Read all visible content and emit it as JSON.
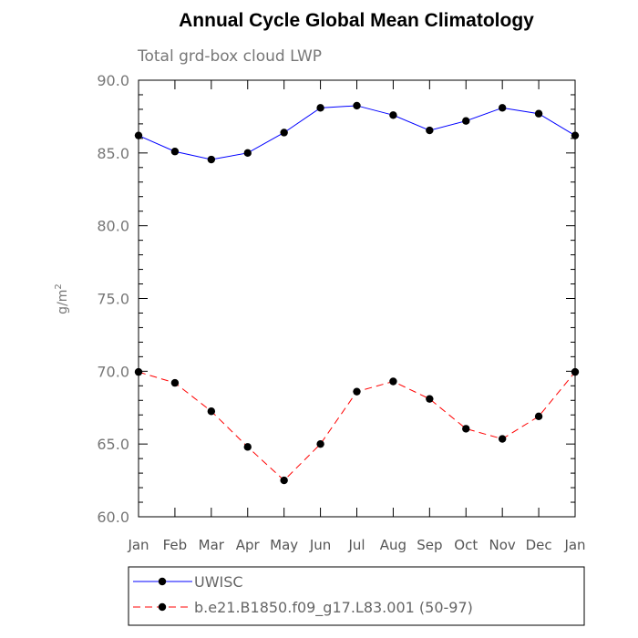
{
  "chart_data": {
    "type": "line",
    "title": "Annual Cycle Global Mean Climatology",
    "subtitle": "Total grd-box cloud LWP",
    "xlabel": "",
    "ylabel": "g/m",
    "ylabel_superscript": "2",
    "ylim": [
      60,
      90
    ],
    "yticks": [
      "60.0",
      "65.0",
      "70.0",
      "75.0",
      "80.0",
      "85.0",
      "90.0"
    ],
    "categories": [
      "Jan",
      "Feb",
      "Mar",
      "Apr",
      "May",
      "Jun",
      "Jul",
      "Aug",
      "Sep",
      "Oct",
      "Nov",
      "Dec",
      "Jan"
    ],
    "grid": false,
    "legend_position": "bottom",
    "series": [
      {
        "name": "UWISC",
        "color": "#0000ff",
        "line_style": "solid",
        "marker": "circle",
        "values": [
          86.2,
          85.1,
          84.55,
          85.0,
          86.4,
          88.1,
          88.25,
          87.6,
          86.55,
          87.2,
          88.1,
          87.7,
          86.2
        ]
      },
      {
        "name": "b.e21.B1850.f09_g17.L83.001 (50-97)",
        "color": "#ff0000",
        "line_style": "dashed",
        "marker": "circle",
        "values": [
          69.95,
          69.2,
          67.25,
          64.8,
          62.5,
          65.0,
          68.6,
          69.3,
          68.1,
          66.05,
          65.35,
          66.9,
          69.95
        ]
      }
    ]
  }
}
